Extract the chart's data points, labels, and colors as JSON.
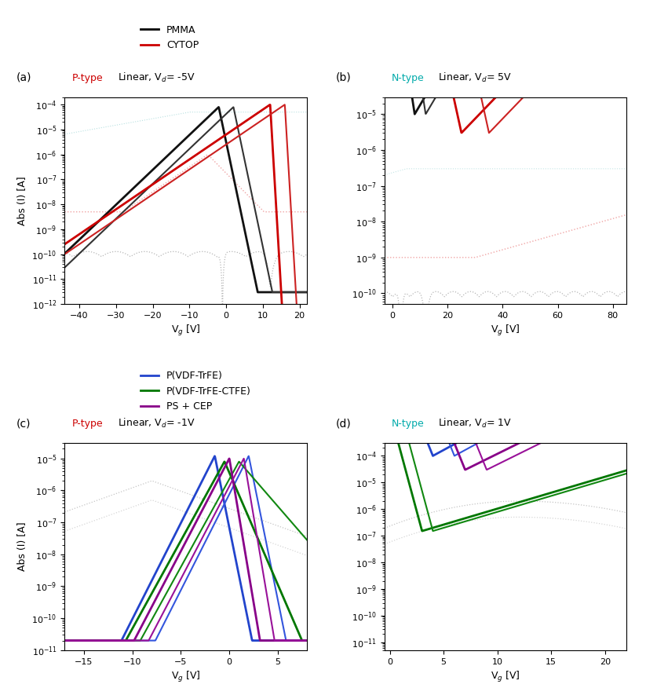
{
  "fig_width": 8.23,
  "fig_height": 8.76,
  "dpi": 100,
  "background": "#ffffff",
  "panel_a": {
    "label": "(a)",
    "xlim": [
      -44,
      22
    ],
    "ylim": [
      1e-12,
      0.0002
    ],
    "xlabel": "V$_g$ [V]",
    "ylabel": "Abs (I) [A]",
    "xticks": [
      -40,
      -30,
      -20,
      -10,
      0,
      10,
      20
    ]
  },
  "panel_b": {
    "label": "(b)",
    "xlim": [
      -3,
      85
    ],
    "ylim": [
      5e-11,
      3e-05
    ],
    "xlabel": "V$_g$ [V]",
    "ylabel": "",
    "xticks": [
      0,
      20,
      40,
      60,
      80
    ]
  },
  "panel_c": {
    "label": "(c)",
    "xlim": [
      -17,
      8
    ],
    "ylim": [
      1e-11,
      3e-05
    ],
    "xlabel": "V$_g$ [V]",
    "ylabel": "Abs (I) [A]",
    "xticks": [
      -15,
      -10,
      -5,
      0,
      5
    ]
  },
  "panel_d": {
    "label": "(d)",
    "xlim": [
      -0.5,
      22
    ],
    "ylim": [
      5e-12,
      0.0003
    ],
    "xlabel": "V$_g$ [V]",
    "ylabel": "",
    "xticks": [
      0,
      5,
      10,
      15,
      20
    ]
  }
}
